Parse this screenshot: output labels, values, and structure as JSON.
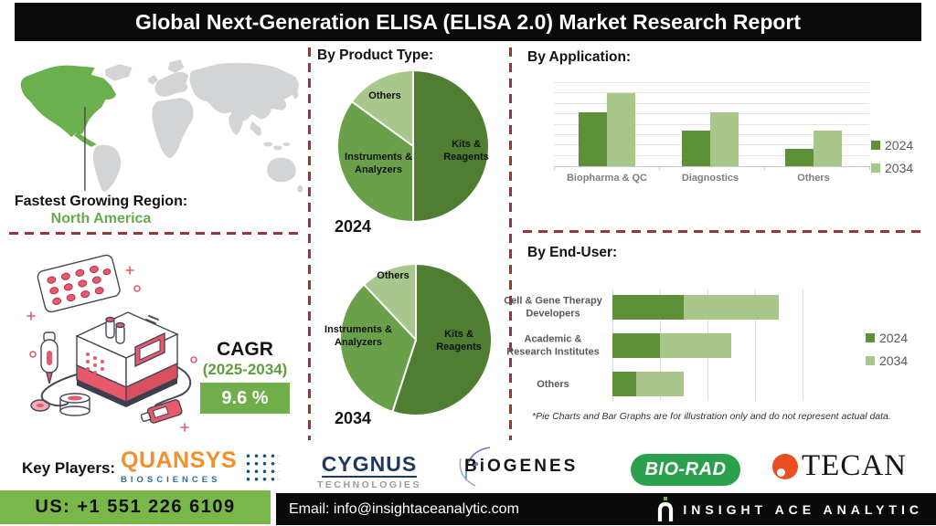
{
  "title": "Global Next-Generation ELISA (ELISA 2.0) Market Research Report",
  "region": {
    "label": "Fastest Growing Region:",
    "value": "North America",
    "highlight_color": "#6ab04c",
    "map_gray": "#d2d4d5"
  },
  "cagr": {
    "label": "CAGR",
    "period": "(2025-2034)",
    "value": "9.6 %",
    "box_color": "#6fae49"
  },
  "product_type": {
    "heading": "By Product Type:",
    "pies": [
      {
        "year": "2024",
        "slices": [
          {
            "label": "Kits & Reagents",
            "value": 50,
            "color": "#4f7d32"
          },
          {
            "label": "Instruments & Analyzers",
            "value": 35,
            "color": "#6ba04a"
          },
          {
            "label": "Others",
            "value": 15,
            "color": "#a7c78c"
          }
        ]
      },
      {
        "year": "2034",
        "slices": [
          {
            "label": "Kits & Reagents",
            "value": 55,
            "color": "#4f7d32"
          },
          {
            "label": "Instruments & Analyzers",
            "value": 33,
            "color": "#6ba04a"
          },
          {
            "label": "Others",
            "value": 12,
            "color": "#a7c78c"
          }
        ]
      }
    ]
  },
  "application": {
    "heading": "By Application:",
    "categories": [
      "Biopharma & QC",
      "Diagnostics",
      "Others"
    ],
    "series": [
      {
        "name": "2024",
        "color": "#5d9038",
        "values": [
          65,
          43,
          21
        ]
      },
      {
        "name": "2034",
        "color": "#a9c78a",
        "values": [
          88,
          65,
          43
        ]
      }
    ]
  },
  "end_user": {
    "heading": "By End-User:",
    "categories": [
      "Cell & Gene Therapy Developers",
      "Academic & Research Institutes",
      "Others"
    ],
    "categories_display": [
      [
        "Cell & Gene Therapy",
        "Developers"
      ],
      [
        "Academic &",
        "Research Institutes"
      ],
      [
        "Others"
      ]
    ],
    "series": [
      {
        "name": "2024",
        "color": "#5d9038",
        "values": [
          1.5,
          1.0,
          0.5
        ]
      },
      {
        "name": "2034",
        "color": "#a9c78a",
        "values": [
          2.0,
          1.5,
          1.0
        ]
      }
    ],
    "xmax": 4
  },
  "footnote": "*Pie Charts and Bar Graphs are for illustration only and do not represent actual data.",
  "key_players": {
    "label": "Key Players:",
    "quansys": {
      "name": "QUANSYS",
      "sub": "BIOSCIENCES"
    },
    "cygnus": {
      "name": "CYGNUS",
      "sub": "TECHNOLOGIES"
    },
    "biogenes": {
      "name": "BiOGENES"
    },
    "biorad": {
      "name": "BIO-RAD"
    },
    "tecan": {
      "name": "TECAN"
    }
  },
  "footer": {
    "phone": "US: +1 551 226 6109",
    "email": "Email: info@insightaceanalytic.com",
    "brand": "INSIGHT ACE ANALYTIC"
  },
  "chart_data": [
    {
      "type": "pie",
      "title": "By Product Type — 2024",
      "labels": [
        "Kits & Reagents",
        "Instruments & Analyzers",
        "Others"
      ],
      "values": [
        50,
        35,
        15
      ],
      "unit": "percent (illustrative)"
    },
    {
      "type": "pie",
      "title": "By Product Type — 2034",
      "labels": [
        "Kits & Reagents",
        "Instruments & Analyzers",
        "Others"
      ],
      "values": [
        55,
        33,
        12
      ],
      "unit": "percent (illustrative)"
    },
    {
      "type": "bar",
      "title": "By Application",
      "categories": [
        "Biopharma & QC",
        "Diagnostics",
        "Others"
      ],
      "series": [
        {
          "name": "2024",
          "values": [
            65,
            43,
            21
          ]
        },
        {
          "name": "2034",
          "values": [
            88,
            65,
            43
          ]
        }
      ],
      "ylim": [
        0,
        100
      ],
      "grid": true,
      "legend_position": "right",
      "note": "illustrative, no value axis labels shown"
    },
    {
      "type": "bar",
      "orientation": "horizontal",
      "stacked": true,
      "title": "By End-User",
      "categories": [
        "Cell & Gene Therapy Developers",
        "Academic & Research Institutes",
        "Others"
      ],
      "series": [
        {
          "name": "2024",
          "values": [
            1.5,
            1.0,
            0.5
          ]
        },
        {
          "name": "2034",
          "values": [
            2.0,
            1.5,
            1.0
          ]
        }
      ],
      "xlim": [
        0,
        4
      ],
      "grid": true,
      "legend_position": "right",
      "note": "illustrative, no value axis labels shown"
    }
  ]
}
